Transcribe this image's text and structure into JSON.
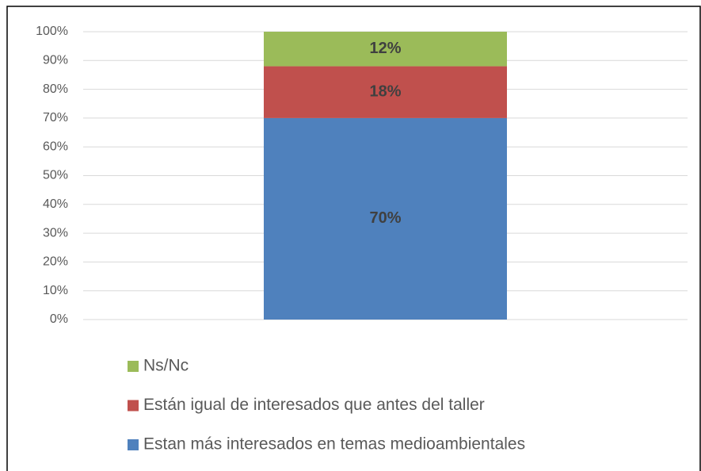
{
  "chart_data": {
    "type": "stacked_bar",
    "categories": [
      null
    ],
    "series": [
      {
        "name": "Estan más interesados en temas medioambientales",
        "color": "#4f81bd",
        "values": [
          70
        ],
        "value_labels": [
          "70%"
        ]
      },
      {
        "name": "Están igual de interesados que antes del taller",
        "color": "#c0504d",
        "values": [
          18
        ],
        "value_labels": [
          "18%"
        ]
      },
      {
        "name": "Ns/Nc",
        "color": "#9bbb59",
        "values": [
          12
        ],
        "value_labels": [
          "12%"
        ]
      }
    ],
    "ylim": [
      0,
      100
    ],
    "yticks": [
      {
        "value": 0,
        "label": "0%"
      },
      {
        "value": 10,
        "label": "10%"
      },
      {
        "value": 20,
        "label": "20%"
      },
      {
        "value": 30,
        "label": "30%"
      },
      {
        "value": 40,
        "label": "40%"
      },
      {
        "value": 50,
        "label": "50%"
      },
      {
        "value": 60,
        "label": "60%"
      },
      {
        "value": 70,
        "label": "70%"
      },
      {
        "value": 80,
        "label": "80%"
      },
      {
        "value": 90,
        "label": "90%"
      },
      {
        "value": 100,
        "label": "100%"
      }
    ],
    "grid": true,
    "legend": "bottom"
  }
}
